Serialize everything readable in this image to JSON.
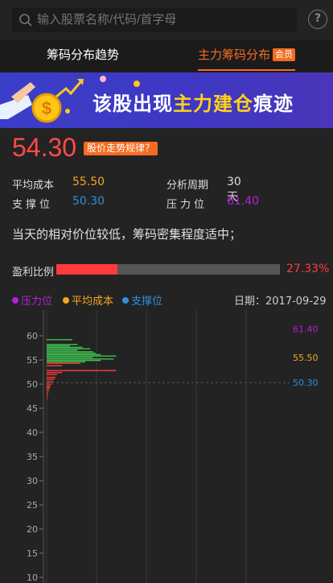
{
  "search": {
    "placeholder": "输入股票名称/代码/首字母",
    "help": "?"
  },
  "tabs": {
    "trend": "筹码分布趋势",
    "main": "主力筹码分布",
    "vip": "会员"
  },
  "banner": {
    "text_a": "该股出现",
    "text_b": "主力建仓",
    "text_c": "痕迹"
  },
  "quote": {
    "price": "54.30",
    "tag": "股价走势规律？"
  },
  "stats": {
    "avg_cost_label": "平均成本",
    "avg_cost": "55.50",
    "support_label": "支撑位",
    "support": "50.30",
    "period_label": "分析周期",
    "period": "30天",
    "pressure_label": "压力位",
    "pressure": "61.40"
  },
  "description": "当天的相对价位较低，筹码密集程度适中；",
  "profit": {
    "label": "盈利比例",
    "value": "27.33%",
    "ratio": 0.2733
  },
  "legend": {
    "pressure": "压力位",
    "avg_cost": "平均成本",
    "support": "支撑位",
    "date": "日期：2017-09-29"
  },
  "colors": {
    "pressure": "#b520d8",
    "avg_cost": "#f5a623",
    "support": "#2f8fe0",
    "profit_chips": "#ff3b3b",
    "loss_chips": "#3fbf4f"
  },
  "chart_data": {
    "type": "bar",
    "orientation": "horizontal",
    "y_ticks": [
      60,
      55,
      50,
      45,
      40,
      35,
      30,
      25,
      20,
      15,
      10
    ],
    "ylim": [
      10,
      61.7
    ],
    "markers": [
      {
        "name": "压力位",
        "value": 61.4,
        "label": "61.40",
        "color": "#b520d8"
      },
      {
        "name": "平均成本",
        "value": 55.5,
        "label": "55.50",
        "color": "#f5a623"
      },
      {
        "name": "支撑位",
        "value": 50.3,
        "label": "50.30",
        "color": "#2f8fe0"
      }
    ],
    "current_price": 54.3,
    "bars": [
      {
        "price": 59.2,
        "volume": 1.0
      },
      {
        "price": 58.2,
        "volume": 1.2
      },
      {
        "price": 57.9,
        "volume": 0.9
      },
      {
        "price": 57.6,
        "volume": 1.4
      },
      {
        "price": 57.3,
        "volume": 1.7
      },
      {
        "price": 57.0,
        "volume": 1.2
      },
      {
        "price": 56.7,
        "volume": 1.8
      },
      {
        "price": 56.4,
        "volume": 1.9
      },
      {
        "price": 56.1,
        "volume": 2.1
      },
      {
        "price": 55.8,
        "volume": 2.7
      },
      {
        "price": 55.5,
        "volume": 1.8
      },
      {
        "price": 55.2,
        "volume": 2.6
      },
      {
        "price": 54.9,
        "volume": 2.1
      },
      {
        "price": 54.6,
        "volume": 1.5
      },
      {
        "price": 54.3,
        "volume": 1.3
      },
      {
        "price": 53.8,
        "volume": 0.6
      },
      {
        "price": 52.8,
        "volume": 2.7
      },
      {
        "price": 52.4,
        "volume": 0.6
      },
      {
        "price": 52.0,
        "volume": 0.4
      },
      {
        "price": 51.4,
        "volume": 0.35
      },
      {
        "price": 51.0,
        "volume": 0.3
      },
      {
        "price": 50.5,
        "volume": 0.25
      },
      {
        "price": 50.0,
        "volume": 0.2
      },
      {
        "price": 49.6,
        "volume": 0.15
      },
      {
        "price": 49.3,
        "volume": 0.12
      },
      {
        "price": 49.0,
        "volume": 0.1
      },
      {
        "price": 48.6,
        "volume": 0.08
      },
      {
        "price": 48.2,
        "volume": 0.06
      },
      {
        "price": 47.8,
        "volume": 0.05
      },
      {
        "price": 47.4,
        "volume": 0.04
      },
      {
        "price": 47.0,
        "volume": 0.03
      }
    ]
  }
}
